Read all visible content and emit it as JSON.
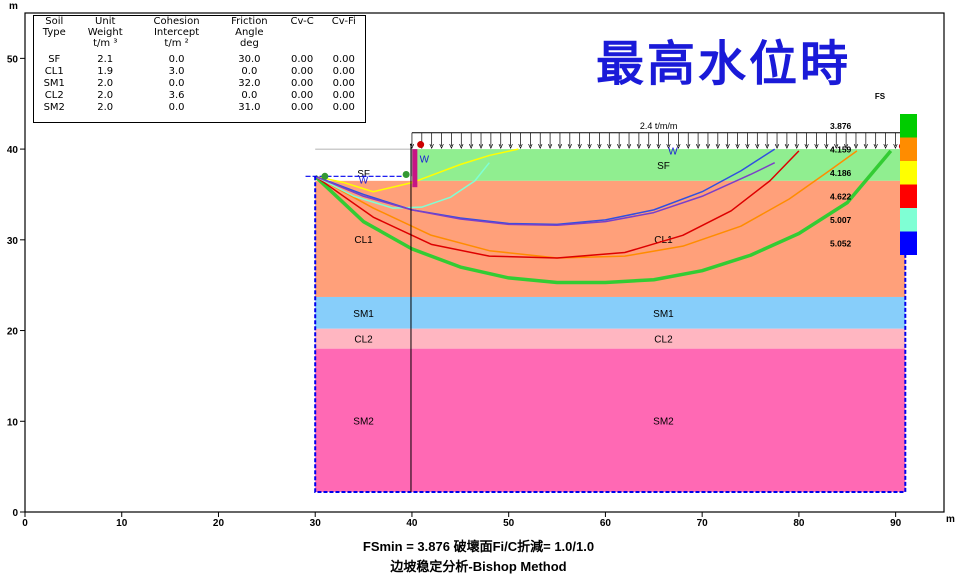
{
  "table": {
    "headers": [
      [
        "Soil",
        "Type"
      ],
      [
        "Unit",
        "Weight",
        "t/m ³"
      ],
      [
        "Cohesion",
        "Intercept",
        "t/m ²"
      ],
      [
        "Friction",
        "Angle",
        "deg"
      ],
      [
        "Cv-C"
      ],
      [
        "Cv-Fi"
      ]
    ],
    "rows": [
      [
        "SF",
        "2.1",
        "0.0",
        "30.0",
        "0.00",
        "0.00"
      ],
      [
        "CL1",
        "1.9",
        "3.0",
        "0.0",
        "0.00",
        "0.00"
      ],
      [
        "SM1",
        "2.0",
        "0.0",
        "32.0",
        "0.00",
        "0.00"
      ],
      [
        "CL2",
        "2.0",
        "3.6",
        "0.0",
        "0.00",
        "0.00"
      ],
      [
        "SM2",
        "2.0",
        "0.0",
        "31.0",
        "0.00",
        "0.00"
      ]
    ]
  },
  "title_overlay": "最高水位時",
  "summary": {
    "line1": "FSmin =  3.876  破壞面Fi/C折減=  1.0/1.0",
    "line2": "边坡稳定分析-Bishop Method"
  },
  "chart_data": {
    "type": "line",
    "x_axis_unit": "m",
    "y_axis_unit": "m",
    "xlim": [
      0,
      95
    ],
    "ylim": [
      0,
      55
    ],
    "x_ticks": [
      0,
      10,
      20,
      30,
      40,
      50,
      60,
      70,
      80,
      90
    ],
    "y_ticks": [
      0,
      10,
      20,
      30,
      40,
      50
    ],
    "grid": false,
    "layers": [
      {
        "name": "SF",
        "top": 40,
        "bottom": 36.5,
        "color": "#90EE90",
        "labels_x": [
          35,
          66
        ]
      },
      {
        "name": "CL1",
        "top": 36.5,
        "bottom": 23.7,
        "color": "#FFA07A",
        "labels_x": [
          35,
          66
        ]
      },
      {
        "name": "SM1",
        "top": 23.7,
        "bottom": 20.2,
        "color": "#87CEFA",
        "labels_x": [
          35,
          66
        ]
      },
      {
        "name": "CL2",
        "top": 20.2,
        "bottom": 18,
        "color": "#FFB6C1",
        "labels_x": [
          35,
          66
        ]
      },
      {
        "name": "SM2",
        "top": 18,
        "bottom": 2.2,
        "color": "#FF69B4",
        "labels_x": [
          35,
          66
        ]
      }
    ],
    "slope_profile": {
      "x_left": 30,
      "x_crest": 40,
      "x_right": 91,
      "toe_elev": 37,
      "crest_elev": 40
    },
    "water_labels": [
      {
        "text": "W",
        "x": 34.5,
        "y": 36.2
      },
      {
        "text": "W",
        "x": 40.8,
        "y": 38.5
      },
      {
        "text": "W",
        "x": 66.5,
        "y": 39.4
      }
    ],
    "load": {
      "label": "2.4 t/m/m",
      "x_start": 40,
      "x_end": 91,
      "elev": 41.8
    },
    "legend_title": "FS",
    "fs_values": [
      {
        "fs": "3.876",
        "color": "#00CC00"
      },
      {
        "fs": "4.159",
        "color": "#FF8C00"
      },
      {
        "fs": "4.186",
        "color": "#FFFF00"
      },
      {
        "fs": "4.622",
        "color": "#FF0000"
      },
      {
        "fs": "5.007",
        "color": "#7FFFD4"
      },
      {
        "fs": "5.052",
        "color": "#0000FF"
      }
    ],
    "slip_surfaces": [
      {
        "fs": "3.876",
        "color": "#33CC33",
        "width": 3.5,
        "points": [
          [
            30,
            37
          ],
          [
            35,
            32
          ],
          [
            40,
            29
          ],
          [
            45,
            27
          ],
          [
            50,
            25.8
          ],
          [
            55,
            25.3
          ],
          [
            60,
            25.3
          ],
          [
            65,
            25.6
          ],
          [
            70,
            26.6
          ],
          [
            75,
            28.3
          ],
          [
            80,
            30.7
          ],
          [
            85,
            34.1
          ],
          [
            89.5,
            39.8
          ]
        ]
      },
      {
        "fs": "4.159",
        "color": "#FF8C00",
        "width": 1.5,
        "points": [
          [
            30,
            37
          ],
          [
            36,
            33.5
          ],
          [
            42,
            30.5
          ],
          [
            48,
            28.8
          ],
          [
            55,
            28
          ],
          [
            62,
            28.2
          ],
          [
            68,
            29.3
          ],
          [
            74,
            31.5
          ],
          [
            79,
            34.5
          ],
          [
            83,
            37.5
          ],
          [
            86,
            39.8
          ]
        ]
      },
      {
        "fs": "4.186",
        "color": "#FFFF00",
        "width": 1.5,
        "points": [
          [
            30,
            37
          ],
          [
            33,
            36.3
          ],
          [
            36,
            35.3
          ],
          [
            40,
            36.3
          ],
          [
            45,
            38.3
          ],
          [
            48,
            39.3
          ],
          [
            51,
            40
          ]
        ]
      },
      {
        "fs": "4.622",
        "color": "#DD0000",
        "width": 1.5,
        "points": [
          [
            30,
            37
          ],
          [
            36,
            32.5
          ],
          [
            42,
            29.5
          ],
          [
            48,
            28.2
          ],
          [
            55,
            28
          ],
          [
            62,
            28.6
          ],
          [
            68,
            30.5
          ],
          [
            73,
            33.2
          ],
          [
            77,
            36.5
          ],
          [
            80,
            39.8
          ]
        ]
      },
      {
        "fs": "5.007",
        "color": "#7FFFD4",
        "width": 1.5,
        "points": [
          [
            30,
            37
          ],
          [
            34,
            34.8
          ],
          [
            38,
            33.5
          ],
          [
            41,
            33.6
          ],
          [
            44,
            34.7
          ],
          [
            46.5,
            36.5
          ],
          [
            48,
            38.5
          ]
        ]
      },
      {
        "fs": "5.052",
        "color": "#3050E0",
        "width": 1.5,
        "points": [
          [
            30,
            37
          ],
          [
            35,
            35
          ],
          [
            40,
            33.3
          ],
          [
            45,
            32.4
          ],
          [
            50,
            31.8
          ],
          [
            55,
            31.7
          ],
          [
            60,
            32.2
          ],
          [
            65,
            33.3
          ],
          [
            70,
            35.3
          ],
          [
            74,
            37.6
          ],
          [
            77.5,
            40
          ]
        ]
      },
      {
        "fs": "",
        "color": "#7B3FC8",
        "width": 1.5,
        "points": [
          [
            30,
            37
          ],
          [
            35,
            34.8
          ],
          [
            40,
            33.3
          ],
          [
            45,
            32.3
          ],
          [
            50,
            31.7
          ],
          [
            55,
            31.6
          ],
          [
            60,
            32
          ],
          [
            65,
            33
          ],
          [
            70,
            34.8
          ],
          [
            75,
            37.2
          ],
          [
            77.5,
            38.5
          ]
        ]
      }
    ],
    "slip_markers": [
      {
        "x": 31,
        "y": 37,
        "color": "#339933"
      },
      {
        "x": 39.4,
        "y": 37.2,
        "color": "#339933"
      },
      {
        "x": 40.9,
        "y": 40.5,
        "color": "#CC0000"
      },
      {
        "x": 90.7,
        "y": 40.3,
        "color": "#CC0000"
      }
    ]
  }
}
